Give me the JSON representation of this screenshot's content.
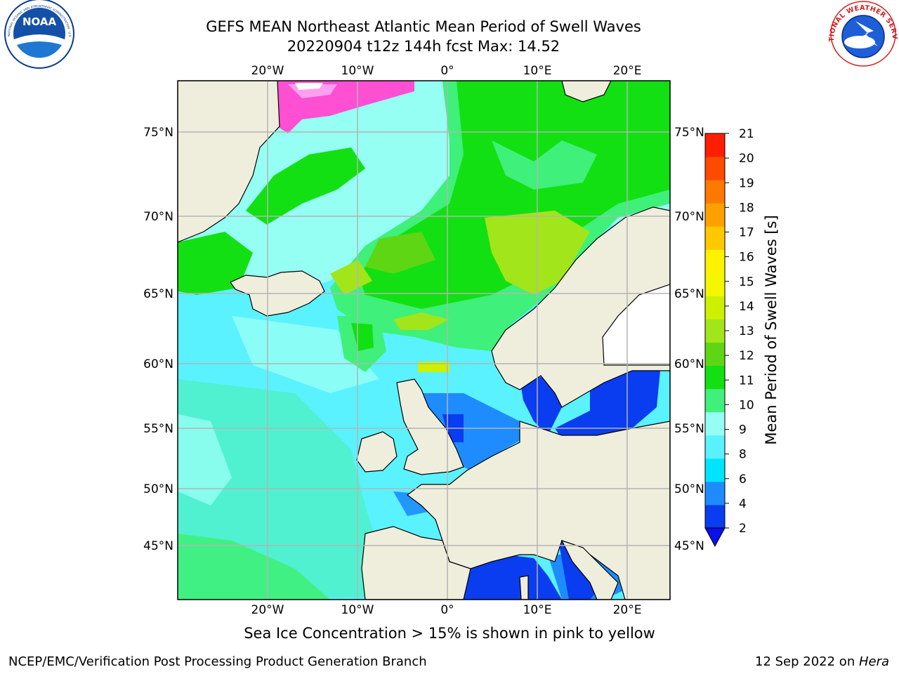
{
  "title": {
    "line1": "GEFS MEAN Northeast Atlantic Mean Period of Swell Waves",
    "line2": "20220904 t12z 144h fcst   Max: 14.52"
  },
  "logos": {
    "left": {
      "text": "NOAA",
      "icon": "noaa-logo-icon",
      "ring_text": "NATIONAL OCEANIC AND ATMOSPHERIC ADMINISTRATION · U.S. DEPARTMENT OF COMMERCE"
    },
    "right": {
      "icon": "nws-logo-icon",
      "ring_text": "NATIONAL WEATHER SERVICE"
    }
  },
  "map": {
    "lon_labels": [
      "20°W",
      "10°W",
      "0°",
      "10°E",
      "20°E"
    ],
    "lat_labels": [
      "75°N",
      "70°N",
      "65°N",
      "60°N",
      "55°N",
      "50°N",
      "45°N"
    ],
    "lon_range": [
      -30,
      25
    ],
    "lat_range": [
      41,
      78
    ]
  },
  "colorbar": {
    "label": "Mean Period of Swell Waves [s]",
    "ticks": [
      "2",
      "4",
      "6",
      "8",
      "9",
      "10",
      "11",
      "12",
      "13",
      "14",
      "15",
      "16",
      "17",
      "18",
      "19",
      "20",
      "21"
    ],
    "colors": [
      "#0a3cf0",
      "#1e8cff",
      "#00e5ff",
      "#5af2ff",
      "#96fff4",
      "#3ff07a",
      "#12e012",
      "#5ed614",
      "#a2e51a",
      "#cdf000",
      "#f3f700",
      "#fff200",
      "#ffc800",
      "#ffa000",
      "#ff7800",
      "#ff4b00",
      "#ff1e00"
    ],
    "extend": "min",
    "extend_color": "#0a10e8"
  },
  "colors": {
    "land": "#efeedd",
    "coast": "#000000",
    "grid": "#b4b4b4",
    "ice_pink": "#ff4fd2",
    "ice_light": "#ff9ff0"
  },
  "footnote": "Sea Ice Concentration > 15% is shown in pink to yellow",
  "credit": "NCEP/EMC/Verification Post Processing Product Generation Branch",
  "date": {
    "text": "12 Sep 2022 on ",
    "system": "Hera"
  }
}
